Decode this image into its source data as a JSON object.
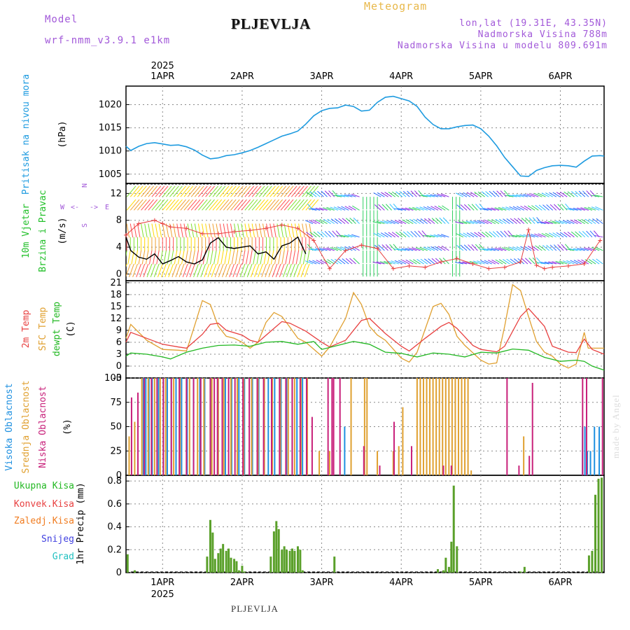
{
  "header": {
    "model_label": "Model",
    "model_name": "wrf-nmm_v3.9.1 e1km",
    "station": "PLJEVLJA",
    "meteogram": "Meteogram",
    "lonlat": "lon,lat (19.31E, 43.35N)",
    "altitude": "Nadmorska Visina 788m",
    "model_altitude": "Nadmorska Visina u modelu 809.691m"
  },
  "footer": {
    "station": "PLJEVLJA",
    "credit": "made by Angel"
  },
  "colors": {
    "pressure": "#1e9be0",
    "wind_labels": "#22c02a",
    "compass": "#a259d9",
    "temp2m": "#e84040",
    "sfc": "#e0a030",
    "dewpt": "#22b822",
    "high_cloud": "#1e90e0",
    "mid_cloud": "#e0a030",
    "low_cloud": "#c8207a",
    "total": "#22b822",
    "conv": "#e84040",
    "frozen": "#f07c20",
    "snow": "#4040e0",
    "hail": "#20c0c0"
  },
  "chart_data": [
    {
      "type": "line",
      "title": "Pritisak na nivou mora",
      "ylabel": "(hPa)",
      "ylim": [
        1003,
        1024
      ],
      "yticks": [
        "1020",
        "1015",
        "1010",
        "1005"
      ],
      "x_axis": {
        "top_year": "2025",
        "bottom_year": "2025",
        "dates": [
          "1APR",
          "2APR",
          "3APR",
          "4APR",
          "5APR",
          "6APR"
        ]
      },
      "x_range_days": [
        0.54,
        6.55
      ],
      "series": [
        {
          "color": "#1e9be0",
          "x": [
            0.54,
            0.6,
            0.7,
            0.8,
            0.9,
            1.0,
            1.1,
            1.2,
            1.3,
            1.4,
            1.5,
            1.6,
            1.7,
            1.8,
            1.9,
            2.0,
            2.1,
            2.2,
            2.3,
            2.4,
            2.5,
            2.6,
            2.7,
            2.8,
            2.9,
            3.0,
            3.1,
            3.2,
            3.3,
            3.4,
            3.5,
            3.6,
            3.7,
            3.8,
            3.9,
            4.0,
            4.1,
            4.2,
            4.3,
            4.4,
            4.5,
            4.6,
            4.7,
            4.8,
            4.9,
            5.0,
            5.1,
            5.2,
            5.3,
            5.4,
            5.5,
            5.6,
            5.7,
            5.8,
            5.9,
            6.0,
            6.1,
            6.2,
            6.3,
            6.4,
            6.5,
            6.55
          ],
          "values": [
            1011,
            1010.1,
            1011,
            1011.6,
            1011.8,
            1011.5,
            1011.2,
            1011.3,
            1010.9,
            1010.2,
            1009.1,
            1008.3,
            1008.5,
            1009.0,
            1009.2,
            1009.6,
            1010.1,
            1010.8,
            1011.6,
            1012.4,
            1013.2,
            1013.7,
            1014.3,
            1015.8,
            1017.6,
            1018.7,
            1019.2,
            1019.3,
            1019.9,
            1019.6,
            1018.6,
            1018.8,
            1020.5,
            1021.6,
            1021.8,
            1021.3,
            1020.8,
            1019.6,
            1017.3,
            1015.7,
            1014.8,
            1014.8,
            1015.2,
            1015.5,
            1015.6,
            1014.8,
            1013.2,
            1011.1,
            1008.6,
            1006.6,
            1004.6,
            1004.5,
            1005.8,
            1006.4,
            1006.8,
            1006.9,
            1006.8,
            1006.5,
            1007.8,
            1008.9,
            1009.0,
            1008.9
          ]
        }
      ]
    },
    {
      "type": "line",
      "title": "10m Vjetar Brzina i Pravac",
      "ylabel": "(m/s)",
      "ylim": [
        -1,
        13.5
      ],
      "yticks": [
        "12",
        "8",
        "4",
        "0"
      ],
      "compass": {
        "w": "W",
        "e": "E",
        "s": "S",
        "n": "N"
      },
      "series": [
        {
          "name": "speed",
          "color": "#000000",
          "x": [
            0.54,
            0.6,
            0.7,
            0.8,
            0.9,
            1.0,
            1.1,
            1.2,
            1.3,
            1.4,
            1.5,
            1.6,
            1.7,
            1.8,
            1.9,
            2.0,
            2.1,
            2.2,
            2.3,
            2.4,
            2.5,
            2.6,
            2.7,
            2.8
          ],
          "values": [
            5.5,
            3.5,
            2.5,
            2.2,
            3.0,
            1.5,
            2.0,
            2.6,
            1.8,
            1.5,
            2.1,
            4.6,
            5.4,
            4.0,
            3.8,
            4.0,
            4.2,
            3.0,
            3.3,
            2.2,
            4.2,
            4.6,
            5.5,
            3.0
          ]
        },
        {
          "name": "gust",
          "color": "#e84040",
          "x": [
            0.54,
            0.7,
            0.9,
            1.0,
            1.1,
            1.3,
            1.5,
            1.7,
            1.9,
            2.1,
            2.3,
            2.5,
            2.7,
            2.9,
            3.1,
            3.3,
            3.5,
            3.7,
            3.9,
            4.1,
            4.3,
            4.5,
            4.7,
            4.9,
            5.1,
            5.3,
            5.5,
            5.6,
            5.7,
            5.8,
            5.9,
            6.1,
            6.3,
            6.5
          ],
          "values": [
            5.8,
            7.5,
            8.0,
            7.5,
            7.0,
            6.8,
            6.0,
            6.0,
            6.3,
            6.5,
            6.8,
            7.3,
            6.8,
            5.0,
            0.8,
            3.5,
            4.3,
            3.8,
            0.8,
            1.2,
            1.0,
            1.8,
            2.3,
            1.5,
            0.8,
            1.0,
            1.8,
            6.6,
            1.3,
            0.8,
            1.0,
            1.2,
            1.5,
            5.0
          ]
        }
      ]
    },
    {
      "type": "line",
      "title": "2m Temp / SFC Temp / dewpt Temp",
      "ylabel": "(C)",
      "ylim": [
        -3,
        21.5
      ],
      "yticks": [
        "21",
        "18",
        "15",
        "12",
        "9",
        "6",
        "3",
        "0",
        "-3"
      ],
      "series": [
        {
          "name": "2m Temp",
          "color": "#e84040",
          "x": [
            0.54,
            0.6,
            0.8,
            1.0,
            1.2,
            1.3,
            1.5,
            1.6,
            1.7,
            1.8,
            2.0,
            2.1,
            2.2,
            2.4,
            2.5,
            2.6,
            2.8,
            3.0,
            3.1,
            3.3,
            3.5,
            3.6,
            3.8,
            4.0,
            4.1,
            4.3,
            4.5,
            4.6,
            4.7,
            4.9,
            5.0,
            5.2,
            5.3,
            5.5,
            5.6,
            5.8,
            5.9,
            6.1,
            6.2,
            6.3,
            6.4,
            6.55
          ],
          "values": [
            6,
            8.5,
            7,
            5.5,
            4.8,
            4.5,
            8,
            10.5,
            10.8,
            9,
            7.8,
            6.5,
            6,
            9.5,
            11.2,
            10.8,
            8.8,
            6,
            4.8,
            6.5,
            11.5,
            12,
            8.2,
            5,
            3.8,
            7,
            10,
            11,
            9.5,
            5.2,
            4.2,
            3.6,
            5,
            12.5,
            14.5,
            10,
            5,
            3.5,
            3.4,
            6.8,
            4.2,
            3
          ]
        },
        {
          "name": "SFC Temp",
          "color": "#e0a030",
          "x": [
            0.54,
            0.6,
            0.8,
            1.0,
            1.2,
            1.3,
            1.4,
            1.5,
            1.6,
            1.7,
            1.8,
            1.9,
            2.0,
            2.1,
            2.2,
            2.3,
            2.4,
            2.5,
            2.6,
            2.7,
            2.8,
            3.0,
            3.1,
            3.3,
            3.4,
            3.5,
            3.6,
            3.7,
            3.8,
            4.0,
            4.1,
            4.2,
            4.4,
            4.5,
            4.6,
            4.7,
            4.8,
            5.0,
            5.1,
            5.2,
            5.3,
            5.4,
            5.5,
            5.6,
            5.7,
            5.8,
            5.9,
            6.0,
            6.1,
            6.2,
            6.3,
            6.35,
            6.4,
            6.55
          ],
          "values": [
            7,
            10.5,
            6.5,
            4.2,
            4,
            3.8,
            10,
            16.5,
            15.5,
            10,
            7.5,
            7,
            6,
            4.5,
            6,
            11,
            13.5,
            12.5,
            9.8,
            7,
            6,
            2.5,
            4.8,
            12,
            18.5,
            15.5,
            10,
            7.8,
            6.5,
            2,
            1,
            3.5,
            15,
            15.8,
            13,
            7.5,
            5.2,
            1.5,
            0.5,
            0.8,
            10,
            20.5,
            19,
            12.5,
            6.2,
            3.5,
            2.5,
            0.5,
            -0.5,
            0.5,
            8.5,
            4.5,
            4.5,
            4.5
          ]
        },
        {
          "name": "dewpt Temp",
          "color": "#22b822",
          "x": [
            0.54,
            0.6,
            0.8,
            1.0,
            1.1,
            1.3,
            1.5,
            1.7,
            1.9,
            2.1,
            2.3,
            2.5,
            2.7,
            2.9,
            3.0,
            3.2,
            3.4,
            3.6,
            3.8,
            4.0,
            4.2,
            4.4,
            4.6,
            4.8,
            5.0,
            5.2,
            5.4,
            5.6,
            5.8,
            6.0,
            6.2,
            6.3,
            6.4,
            6.55
          ],
          "values": [
            2.5,
            3.3,
            3,
            2.3,
            1.8,
            3.5,
            4.5,
            5.2,
            5.3,
            5,
            6,
            6.2,
            5.5,
            6.2,
            4.2,
            5.2,
            6.2,
            5.5,
            3.5,
            3.2,
            2.3,
            3.3,
            3,
            2.3,
            3.5,
            3.3,
            4.3,
            4,
            2.2,
            1.2,
            1.5,
            1.2,
            0,
            -1
          ]
        }
      ]
    },
    {
      "type": "bar",
      "title": "Visoka Oblacnost / Srednja Oblacnost / Niska Oblacnost",
      "ylabel": "(%)",
      "ylim": [
        0,
        100
      ],
      "yticks": [
        "100",
        "75",
        "50",
        "25",
        "0"
      ],
      "series": [
        {
          "name": "Visoka Oblacnost",
          "color": "#1e90e0",
          "x": [
            0.75,
            0.78,
            0.82,
            0.86,
            0.94,
            1.0,
            1.05,
            1.1,
            1.16,
            1.23,
            1.3,
            1.38,
            1.46,
            1.52,
            1.6,
            1.69,
            1.78,
            1.86,
            1.95,
            2.02,
            2.12,
            2.2,
            2.32,
            2.4,
            2.48,
            2.55,
            2.62,
            2.68,
            2.75,
            3.28,
            6.27,
            6.3,
            6.33,
            6.37,
            6.42,
            6.48
          ],
          "values": [
            100,
            100,
            100,
            100,
            100,
            100,
            100,
            100,
            100,
            100,
            100,
            100,
            100,
            100,
            100,
            100,
            100,
            100,
            100,
            100,
            100,
            100,
            100,
            100,
            100,
            100,
            100,
            100,
            100,
            50,
            50,
            50,
            25,
            25,
            50,
            50
          ]
        },
        {
          "name": "Srednja Oblacnost",
          "color": "#e0a030",
          "x": [
            0.56,
            0.63,
            0.72,
            0.8,
            0.88,
            0.95,
            1.02,
            1.12,
            1.2,
            1.32,
            1.42,
            1.5,
            1.6,
            1.68,
            1.75,
            1.84,
            1.92,
            2.0,
            2.1,
            2.18,
            2.26,
            2.36,
            2.46,
            2.56,
            2.64,
            2.72,
            2.8,
            2.95,
            3.08,
            3.35,
            3.52,
            3.55,
            3.68,
            3.88,
            3.95,
            4.0,
            4.18,
            4.22,
            4.26,
            4.3,
            4.34,
            4.38,
            4.42,
            4.46,
            4.5,
            4.54,
            4.58,
            4.62,
            4.66,
            4.7,
            4.74,
            4.78,
            4.82,
            4.86,
            5.52
          ],
          "values": [
            40,
            55,
            100,
            100,
            100,
            100,
            100,
            100,
            100,
            100,
            100,
            100,
            100,
            100,
            100,
            100,
            100,
            100,
            100,
            100,
            100,
            100,
            100,
            100,
            100,
            100,
            100,
            25,
            25,
            100,
            100,
            100,
            25,
            25,
            30,
            70,
            100,
            100,
            100,
            100,
            100,
            100,
            100,
            100,
            100,
            100,
            100,
            100,
            100,
            100,
            100,
            100,
            100,
            5,
            40
          ]
        },
        {
          "name": "Niska Oblacnost",
          "color": "#c8207a",
          "x": [
            0.58,
            0.66,
            0.74,
            0.83,
            0.9,
            0.98,
            1.08,
            1.18,
            1.27,
            1.36,
            1.45,
            1.57,
            1.62,
            1.66,
            1.72,
            1.8,
            1.88,
            1.98,
            2.06,
            2.16,
            2.24,
            2.34,
            2.44,
            2.52,
            2.6,
            2.7,
            2.78,
            2.85,
            3.05,
            3.1,
            3.12,
            3.2,
            3.5,
            3.7,
            3.88,
            4.1,
            4.5,
            4.6,
            5.3,
            5.45,
            5.58,
            5.62,
            6.25,
            6.3,
            6.5
          ],
          "values": [
            80,
            85,
            100,
            100,
            100,
            100,
            100,
            100,
            100,
            100,
            100,
            100,
            100,
            100,
            100,
            100,
            100,
            100,
            100,
            100,
            100,
            100,
            100,
            100,
            100,
            100,
            100,
            60,
            100,
            100,
            100,
            100,
            30,
            10,
            55,
            30,
            10,
            10,
            100,
            10,
            20,
            95,
            100,
            100,
            100
          ]
        }
      ]
    },
    {
      "type": "bar",
      "title": "1hr Precip",
      "ylabel": "1hr Precip (mm)",
      "ylim": [
        0,
        0.85
      ],
      "yticks": [
        "0.8",
        "0.6",
        "0.4",
        "0.2",
        "0"
      ],
      "legend": [
        "Ukupna Kisa",
        "Konvek.Kisa",
        "Zaledj.Kisa",
        "Snijeg",
        "Grad"
      ],
      "series": [
        {
          "name": "Ukupna Kisa",
          "color": "#5aa02a",
          "x": [
            0.56,
            0.65,
            1.56,
            1.6,
            1.63,
            1.66,
            1.7,
            1.73,
            1.76,
            1.8,
            1.83,
            1.86,
            1.9,
            1.93,
            1.96,
            2.0,
            2.03,
            2.36,
            2.4,
            2.43,
            2.46,
            2.5,
            2.53,
            2.56,
            2.6,
            2.63,
            2.66,
            2.7,
            2.73,
            2.76,
            3.16,
            4.46,
            4.53,
            4.56,
            4.6,
            4.63,
            4.66,
            4.7,
            5.5,
            5.55,
            6.36,
            6.4,
            6.44,
            6.48,
            6.52
          ],
          "values": [
            0.16,
            0.02,
            0.14,
            0.46,
            0.35,
            0.12,
            0.17,
            0.21,
            0.25,
            0.19,
            0.21,
            0.13,
            0.12,
            0.1,
            0.02,
            0.06,
            0.01,
            0.14,
            0.36,
            0.45,
            0.38,
            0.2,
            0.23,
            0.2,
            0.19,
            0.21,
            0.19,
            0.23,
            0.2,
            0.02,
            0.14,
            0.03,
            0.02,
            0.13,
            0.05,
            0.27,
            0.76,
            0.23,
            0.01,
            0.05,
            0.15,
            0.19,
            0.68,
            0.82,
            0.83
          ]
        }
      ]
    }
  ]
}
